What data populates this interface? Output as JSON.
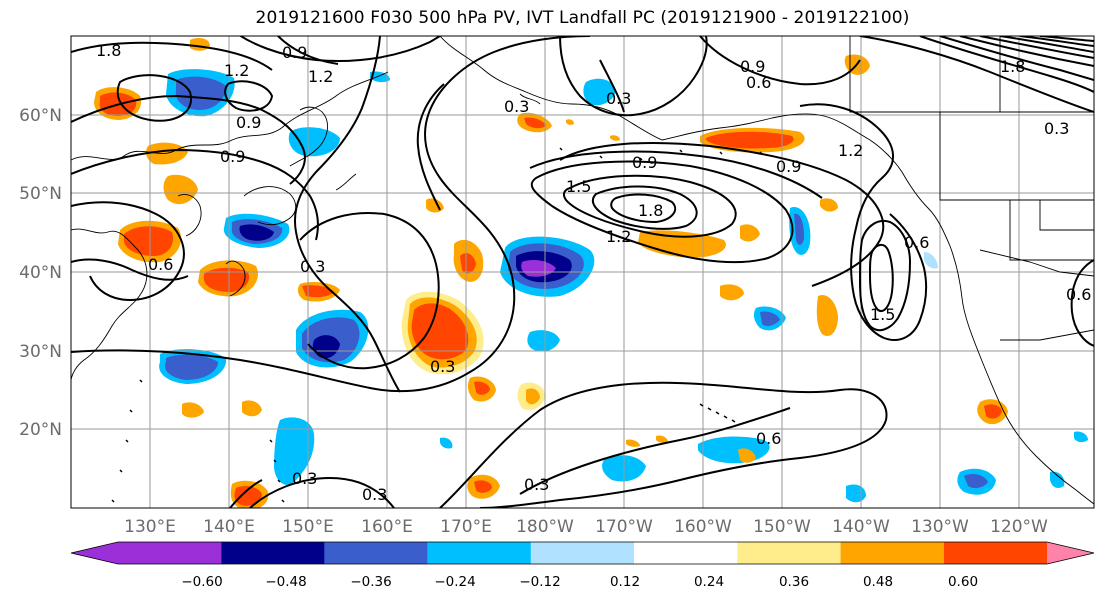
{
  "title": "2019121600 F030 500 hPa PV, IVT Landfall PC (2019121900 - 2019122100)",
  "latitude_labels": [
    "60°N",
    "50°N",
    "40°N",
    "30°N",
    "20°N"
  ],
  "longitude_labels": [
    "130°E",
    "140°E",
    "150°E",
    "160°E",
    "170°E",
    "180°W",
    "170°W",
    "160°W",
    "150°W",
    "140°W",
    "130°W",
    "120°W"
  ],
  "contour_labels": [
    "1.8",
    "0.9",
    "1.2",
    "0.9",
    "0.9",
    "0.6",
    "0.3",
    "0.9",
    "1.5",
    "1.8",
    "1.2",
    "1.2",
    "0.9",
    "0.6",
    "1.5",
    "0.6",
    "0.3",
    "0.9",
    "0.3",
    "0.3",
    "0.3",
    "0.3",
    "0.6",
    "0.3",
    "0.6",
    "0.3",
    "1.2",
    "1.8"
  ],
  "colorbar": {
    "ticks": [
      "−0.60",
      "−0.48",
      "−0.36",
      "−0.24",
      "−0.12",
      "0.12",
      "0.24",
      "0.36",
      "0.48",
      "0.60"
    ],
    "colors": [
      "#9b30d9",
      "#00008b",
      "#3a5fcd",
      "#00bfff",
      "#b0e2ff",
      "#ffffff",
      "#ffec8b",
      "#ffa500",
      "#ff4500",
      "#b22222",
      "#ff82ab"
    ]
  },
  "colors": {
    "contour": "#000000",
    "grid": "#9a9a9a",
    "coastline": "#000000",
    "axis_label": "#6b6b6b"
  }
}
